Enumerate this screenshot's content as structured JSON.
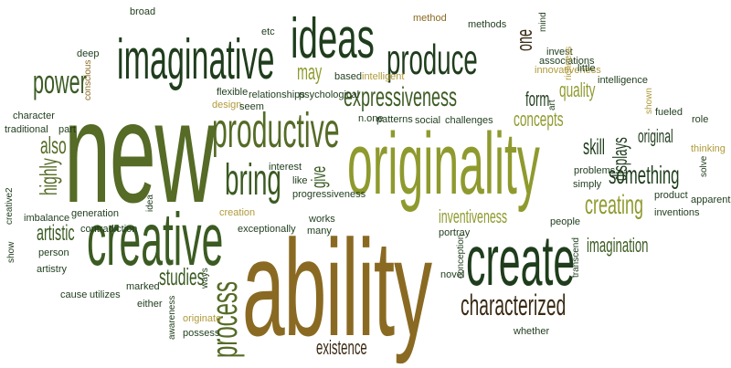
{
  "words": [
    {
      "id": "new",
      "text": "new"
    },
    {
      "id": "ability",
      "text": "ability"
    },
    {
      "id": "originality",
      "text": "originality"
    },
    {
      "id": "creative",
      "text": "creative"
    },
    {
      "id": "imaginative",
      "text": "imaginative"
    },
    {
      "id": "ideas",
      "text": "ideas"
    },
    {
      "id": "create",
      "text": "create"
    },
    {
      "id": "productive",
      "text": "productive"
    },
    {
      "id": "produce",
      "text": "produce"
    },
    {
      "id": "expressiveness",
      "text": "expressiveness"
    },
    {
      "id": "bring",
      "text": "bring"
    },
    {
      "id": "characterized",
      "text": "characterized"
    },
    {
      "id": "creating",
      "text": "creating"
    },
    {
      "id": "something",
      "text": "something"
    },
    {
      "id": "power",
      "text": "power"
    },
    {
      "id": "process",
      "text": "process"
    },
    {
      "id": "inventiveness",
      "text": "inventiveness"
    },
    {
      "id": "imagination",
      "text": "imagination"
    },
    {
      "id": "concepts",
      "text": "concepts"
    },
    {
      "id": "existence",
      "text": "existence"
    },
    {
      "id": "quality",
      "text": "quality"
    },
    {
      "id": "original",
      "text": "original"
    },
    {
      "id": "skill",
      "text": "skill"
    },
    {
      "id": "displays",
      "text": "displays"
    },
    {
      "id": "studies",
      "text": "studies"
    },
    {
      "id": "artistic",
      "text": "artistic"
    },
    {
      "id": "highly",
      "text": "highly"
    },
    {
      "id": "also",
      "text": "also"
    },
    {
      "id": "form",
      "text": "form"
    },
    {
      "id": "may",
      "text": "may"
    },
    {
      "id": "give",
      "text": "give"
    },
    {
      "id": "one",
      "text": "one"
    },
    {
      "id": "broad",
      "text": "broad"
    },
    {
      "id": "etc",
      "text": "etc"
    },
    {
      "id": "method",
      "text": "method"
    },
    {
      "id": "methods",
      "text": "methods"
    },
    {
      "id": "mind",
      "text": "mind"
    },
    {
      "id": "deep",
      "text": "deep"
    },
    {
      "id": "conscious",
      "text": "conscious"
    },
    {
      "id": "invest",
      "text": "invest"
    },
    {
      "id": "associations",
      "text": "associations"
    },
    {
      "id": "innovativeness",
      "text": "innovativeness"
    },
    {
      "id": "richness",
      "text": "richness"
    },
    {
      "id": "little",
      "text": "little"
    },
    {
      "id": "intelligence",
      "text": "intelligence"
    },
    {
      "id": "based",
      "text": "based"
    },
    {
      "id": "intelligent",
      "text": "intelligent"
    },
    {
      "id": "flexible",
      "text": "flexible"
    },
    {
      "id": "relationships",
      "text": "relationships"
    },
    {
      "id": "psychological",
      "text": "psychological"
    },
    {
      "id": "design",
      "text": "design"
    },
    {
      "id": "seem",
      "text": "seem"
    },
    {
      "id": "n_one",
      "text": "n.one"
    },
    {
      "id": "patterns",
      "text": "patterns"
    },
    {
      "id": "social",
      "text": "social"
    },
    {
      "id": "challenges",
      "text": "challenges"
    },
    {
      "id": "art",
      "text": "art"
    },
    {
      "id": "shown",
      "text": "shown"
    },
    {
      "id": "fueled",
      "text": "fueled"
    },
    {
      "id": "role",
      "text": "role"
    },
    {
      "id": "thinking",
      "text": "thinking"
    },
    {
      "id": "solve",
      "text": "solve"
    },
    {
      "id": "character",
      "text": "character"
    },
    {
      "id": "traditional",
      "text": "traditional"
    },
    {
      "id": "part",
      "text": "part"
    },
    {
      "id": "interest",
      "text": "interest"
    },
    {
      "id": "like",
      "text": "like"
    },
    {
      "id": "progressiveness",
      "text": "progressiveness"
    },
    {
      "id": "problems",
      "text": "problems"
    },
    {
      "id": "simply",
      "text": "simply"
    },
    {
      "id": "product",
      "text": "product"
    },
    {
      "id": "apparent",
      "text": "apparent"
    },
    {
      "id": "inventions",
      "text": "inventions"
    },
    {
      "id": "creative2",
      "text": "creative2"
    },
    {
      "id": "imbalance",
      "text": "imbalance"
    },
    {
      "id": "generation",
      "text": "generation"
    },
    {
      "id": "contradiction",
      "text": "contradiction"
    },
    {
      "id": "idea",
      "text": "idea"
    },
    {
      "id": "creation",
      "text": "creation"
    },
    {
      "id": "exceptionally",
      "text": "exceptionally"
    },
    {
      "id": "works",
      "text": "works"
    },
    {
      "id": "many",
      "text": "many"
    },
    {
      "id": "portray",
      "text": "portray"
    },
    {
      "id": "people",
      "text": "people"
    },
    {
      "id": "conception",
      "text": "conception"
    },
    {
      "id": "transcend",
      "text": "transcend"
    },
    {
      "id": "show",
      "text": "show"
    },
    {
      "id": "person",
      "text": "person"
    },
    {
      "id": "artistry",
      "text": "artistry"
    },
    {
      "id": "cause",
      "text": "cause"
    },
    {
      "id": "utilizes",
      "text": "utilizes"
    },
    {
      "id": "marked",
      "text": "marked"
    },
    {
      "id": "either",
      "text": "either"
    },
    {
      "id": "ways",
      "text": "ways"
    },
    {
      "id": "awareness",
      "text": "awareness"
    },
    {
      "id": "originate",
      "text": "originate"
    },
    {
      "id": "possess",
      "text": "possess"
    },
    {
      "id": "novel",
      "text": "novel"
    },
    {
      "id": "whether",
      "text": "whether"
    }
  ],
  "palette": {
    "dark_green": "#1f3d1c",
    "mid_green": "#3b5b22",
    "olive": "#556b26",
    "yellow_olive": "#8f9a2e",
    "light_olive": "#a7a94a",
    "brown_gold": "#8a6a22",
    "dark_brown": "#3a2a14",
    "gold": "#b09a3a",
    "background": "#ffffff"
  }
}
